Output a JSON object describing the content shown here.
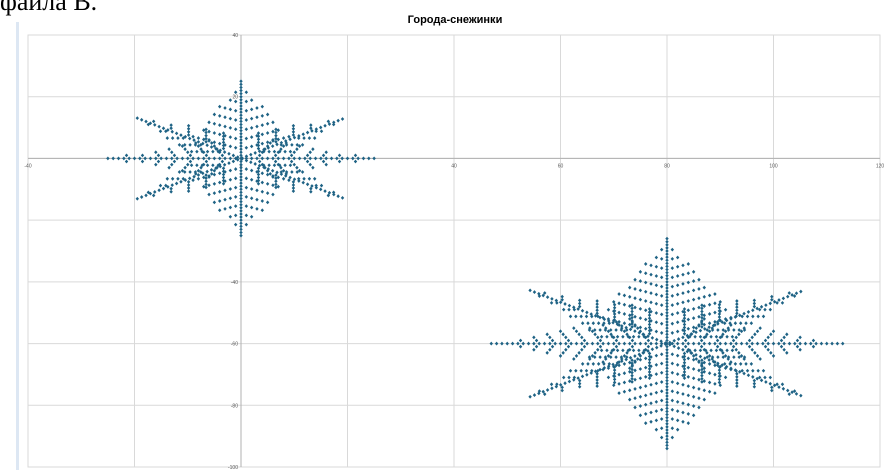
{
  "page": {
    "caption": "файла В."
  },
  "colors": {
    "marker": "#1f6385",
    "grid": "#d9d9d9",
    "axis": "#b0b0b0",
    "tick_text": "#595959",
    "title_text": "#000000"
  },
  "chart_data": {
    "type": "scatter",
    "title": "Города-снежинки",
    "xlabel": "",
    "ylabel": "",
    "xlim": [
      -40,
      120
    ],
    "ylim": [
      -100,
      40
    ],
    "x_ticks": [
      -40,
      0,
      40,
      60,
      80,
      100,
      120
    ],
    "y_ticks": [
      40,
      20,
      -40,
      -60,
      -80,
      -100
    ],
    "grid": true,
    "legend": "none",
    "marker": "diamond",
    "snowflakes": [
      {
        "center": [
          0,
          0
        ],
        "radius_x": 25,
        "radius_y": 25
      },
      {
        "center": [
          80,
          -60
        ],
        "radius_x": 33,
        "radius_y": 34
      }
    ]
  }
}
